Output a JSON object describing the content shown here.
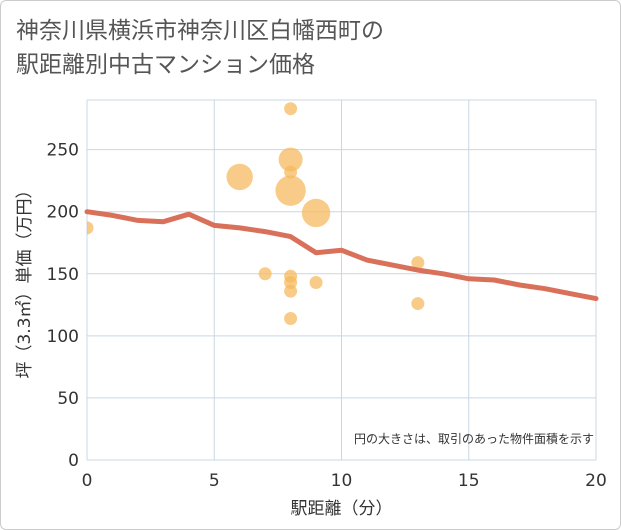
{
  "title_lines": [
    "神奈川県横浜市神奈川区白幡西町の",
    "駅距離別中古マンション価格"
  ],
  "chart_data": {
    "type": "scatter",
    "title": "神奈川県横浜市神奈川区白幡西町の駅距離別中古マンション価格",
    "xlabel": "駅距離（分）",
    "ylabel": "坪（3.3㎡）単価（万円）",
    "xlim": [
      0,
      20
    ],
    "ylim": [
      0,
      290
    ],
    "x_ticks": [
      0,
      5,
      10,
      15,
      20
    ],
    "y_ticks": [
      0,
      50,
      100,
      150,
      200,
      250
    ],
    "grid": true,
    "note": "円の大きさは、取引のあった物件面積を示す",
    "points": [
      {
        "x": 0,
        "y": 187,
        "size": 1
      },
      {
        "x": 6,
        "y": 228,
        "size": 3
      },
      {
        "x": 7,
        "y": 150,
        "size": 1
      },
      {
        "x": 8,
        "y": 283,
        "size": 1
      },
      {
        "x": 8,
        "y": 242,
        "size": 2.5
      },
      {
        "x": 8,
        "y": 232,
        "size": 1
      },
      {
        "x": 8,
        "y": 217,
        "size": 4
      },
      {
        "x": 8,
        "y": 148,
        "size": 1
      },
      {
        "x": 8,
        "y": 143,
        "size": 1
      },
      {
        "x": 8,
        "y": 136,
        "size": 1
      },
      {
        "x": 8,
        "y": 114,
        "size": 1
      },
      {
        "x": 9,
        "y": 199,
        "size": 3.5
      },
      {
        "x": 9,
        "y": 143,
        "size": 1
      },
      {
        "x": 13,
        "y": 159,
        "size": 1
      },
      {
        "x": 13,
        "y": 126,
        "size": 1
      }
    ],
    "trend_line": {
      "x": [
        0,
        1,
        2,
        3,
        4,
        5,
        6,
        7,
        8,
        9,
        10,
        11,
        12,
        13,
        14,
        15,
        16,
        17,
        18,
        19,
        20
      ],
      "y": [
        200,
        197,
        193,
        192,
        198,
        189,
        187,
        184,
        180,
        167,
        169,
        161,
        157,
        153,
        150,
        146,
        145,
        141,
        138,
        134,
        130
      ]
    },
    "colors": {
      "bubble": "#f5b95a",
      "trend": "#d9705a",
      "grid": "#c9d7e3"
    }
  }
}
